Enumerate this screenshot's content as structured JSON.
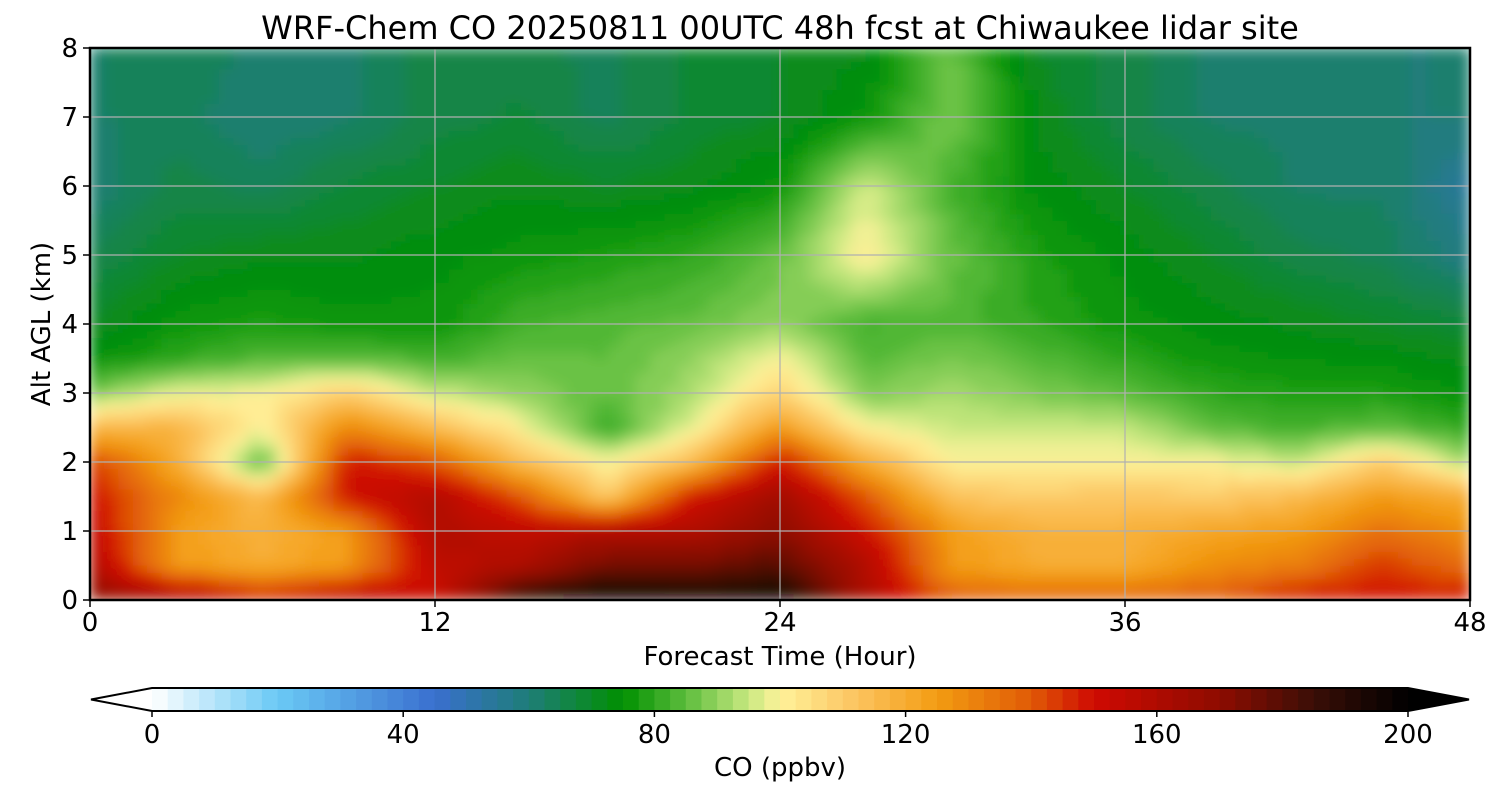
{
  "chart_data": {
    "type": "heatmap",
    "title": "WRF-Chem CO  20250811 00UTC 48h fcst at Chiwaukee lidar site",
    "xlabel": "Forecast Time (Hour)",
    "ylabel": "Alt AGL (km)",
    "xlim": [
      0,
      48
    ],
    "ylim": [
      0,
      8
    ],
    "xticks": [
      "0",
      "12",
      "24",
      "36",
      "48"
    ],
    "yticks": [
      "0",
      "1",
      "2",
      "3",
      "4",
      "5",
      "6",
      "7",
      "8"
    ],
    "grid": true,
    "x_hours": [
      0,
      3,
      6,
      9,
      12,
      15,
      18,
      21,
      24,
      27,
      30,
      33,
      36,
      39,
      42,
      45,
      48
    ],
    "z_km": [
      0,
      0.5,
      1,
      1.5,
      2,
      2.5,
      3,
      3.5,
      4,
      5,
      6,
      7,
      8
    ],
    "co_ppbv": [
      [
        170,
        165,
        150,
        160,
        150,
        190,
        200,
        195,
        198,
        160,
        140,
        138,
        138,
        140,
        150,
        150,
        150
      ],
      [
        160,
        125,
        120,
        125,
        155,
        160,
        175,
        175,
        180,
        160,
        125,
        120,
        120,
        128,
        132,
        145,
        135
      ],
      [
        155,
        125,
        118,
        125,
        160,
        155,
        160,
        160,
        170,
        150,
        125,
        118,
        118,
        122,
        125,
        135,
        128
      ],
      [
        150,
        130,
        115,
        150,
        160,
        140,
        110,
        150,
        165,
        140,
        112,
        110,
        112,
        110,
        115,
        125,
        120
      ],
      [
        145,
        120,
        82,
        150,
        140,
        115,
        100,
        115,
        150,
        120,
        100,
        100,
        100,
        100,
        95,
        110,
        92
      ],
      [
        115,
        118,
        100,
        130,
        115,
        100,
        80,
        98,
        125,
        100,
        95,
        95,
        95,
        85,
        82,
        85,
        80
      ],
      [
        88,
        98,
        100,
        110,
        95,
        90,
        85,
        92,
        108,
        88,
        92,
        88,
        85,
        80,
        78,
        78,
        75
      ],
      [
        75,
        80,
        84,
        85,
        82,
        86,
        85,
        90,
        100,
        84,
        88,
        84,
        80,
        76,
        75,
        74,
        72
      ],
      [
        70,
        76,
        78,
        76,
        76,
        82,
        84,
        86,
        90,
        82,
        84,
        80,
        76,
        74,
        72,
        70,
        68
      ],
      [
        65,
        70,
        72,
        72,
        74,
        76,
        78,
        80,
        86,
        102,
        86,
        78,
        74,
        70,
        66,
        64,
        58
      ],
      [
        60,
        66,
        64,
        68,
        70,
        72,
        70,
        72,
        76,
        96,
        82,
        74,
        70,
        66,
        62,
        62,
        54
      ],
      [
        62,
        64,
        60,
        62,
        66,
        68,
        64,
        68,
        70,
        76,
        88,
        72,
        66,
        62,
        62,
        60,
        60
      ],
      [
        62,
        64,
        62,
        62,
        66,
        66,
        64,
        68,
        70,
        72,
        86,
        70,
        66,
        62,
        62,
        60,
        60
      ]
    ],
    "colorbar": {
      "label": "CO  (ppbv)",
      "min": 0,
      "max": 200,
      "step": 2.5,
      "ticks": [
        "0",
        "40",
        "80",
        "120",
        "160",
        "200"
      ],
      "extend": "both",
      "color_stops": [
        {
          "v": 0,
          "c": "#ffffff"
        },
        {
          "v": 20,
          "c": "#6ac9f5"
        },
        {
          "v": 45,
          "c": "#3a6fcf"
        },
        {
          "v": 60,
          "c": "#1e7d78"
        },
        {
          "v": 75,
          "c": "#009000"
        },
        {
          "v": 85,
          "c": "#5cbc3c"
        },
        {
          "v": 95,
          "c": "#c8e880"
        },
        {
          "v": 100,
          "c": "#fff29a"
        },
        {
          "v": 112,
          "c": "#fcc460"
        },
        {
          "v": 125,
          "c": "#f39c12"
        },
        {
          "v": 140,
          "c": "#e05a06"
        },
        {
          "v": 150,
          "c": "#cf0a02"
        },
        {
          "v": 170,
          "c": "#8e0c00"
        },
        {
          "v": 185,
          "c": "#3a0e06"
        },
        {
          "v": 200,
          "c": "#000000"
        }
      ]
    }
  }
}
